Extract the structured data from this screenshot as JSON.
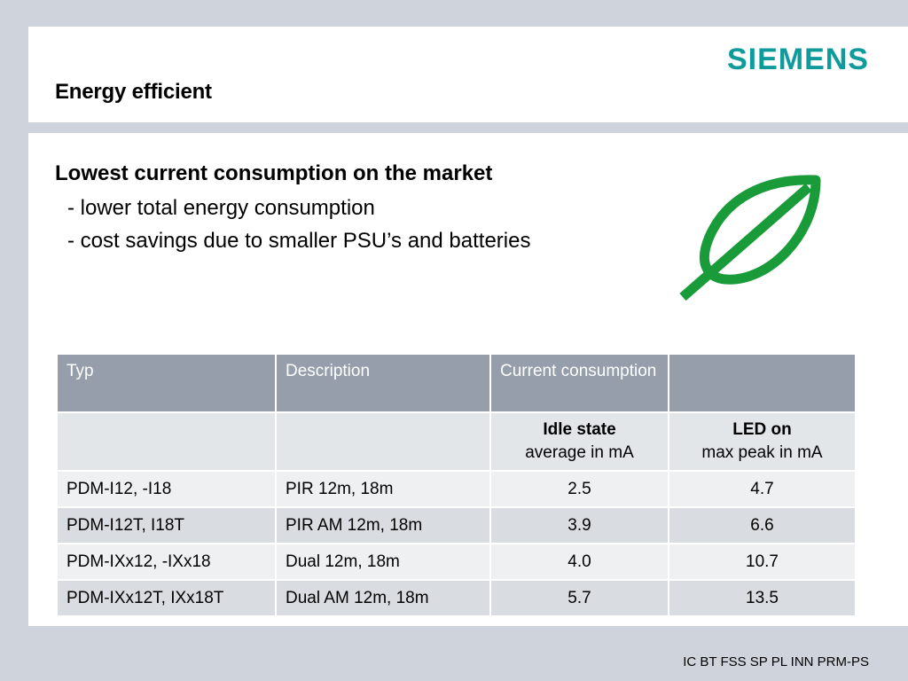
{
  "header": {
    "title": "Energy efficient",
    "logo": "SIEMENS"
  },
  "content": {
    "heading": "Lowest current consumption on the market",
    "bullets": [
      "- lower total energy consumption",
      "- cost savings due to smaller PSU’s and batteries"
    ]
  },
  "table": {
    "headers": [
      "Typ",
      "Description",
      "Current consumption",
      ""
    ],
    "subheader": {
      "col3_bold": "Idle state",
      "col3_sub": "average in mA",
      "col4_bold": "LED on",
      "col4_sub": "max peak in mA"
    },
    "rows": [
      [
        "PDM-I12, -I18",
        "PIR 12m, 18m",
        "2.5",
        "4.7"
      ],
      [
        "PDM-I12T, I18T",
        "PIR AM 12m, 18m",
        "3.9",
        "6.6"
      ],
      [
        "PDM-IXx12, -IXx18",
        "Dual 12m, 18m",
        "4.0",
        "10.7"
      ],
      [
        "PDM-IXx12T, IXx18T",
        "Dual AM 12m, 18m",
        "5.7",
        "13.5"
      ]
    ]
  },
  "footer": {
    "text": "IC BT FSS SP PL INN PRM-PS"
  },
  "colors": {
    "brand": "#0f9a9c",
    "leaf": "#1a9b3a",
    "header_row": "#959eaa"
  },
  "icons": {
    "leaf": "leaf-icon"
  }
}
